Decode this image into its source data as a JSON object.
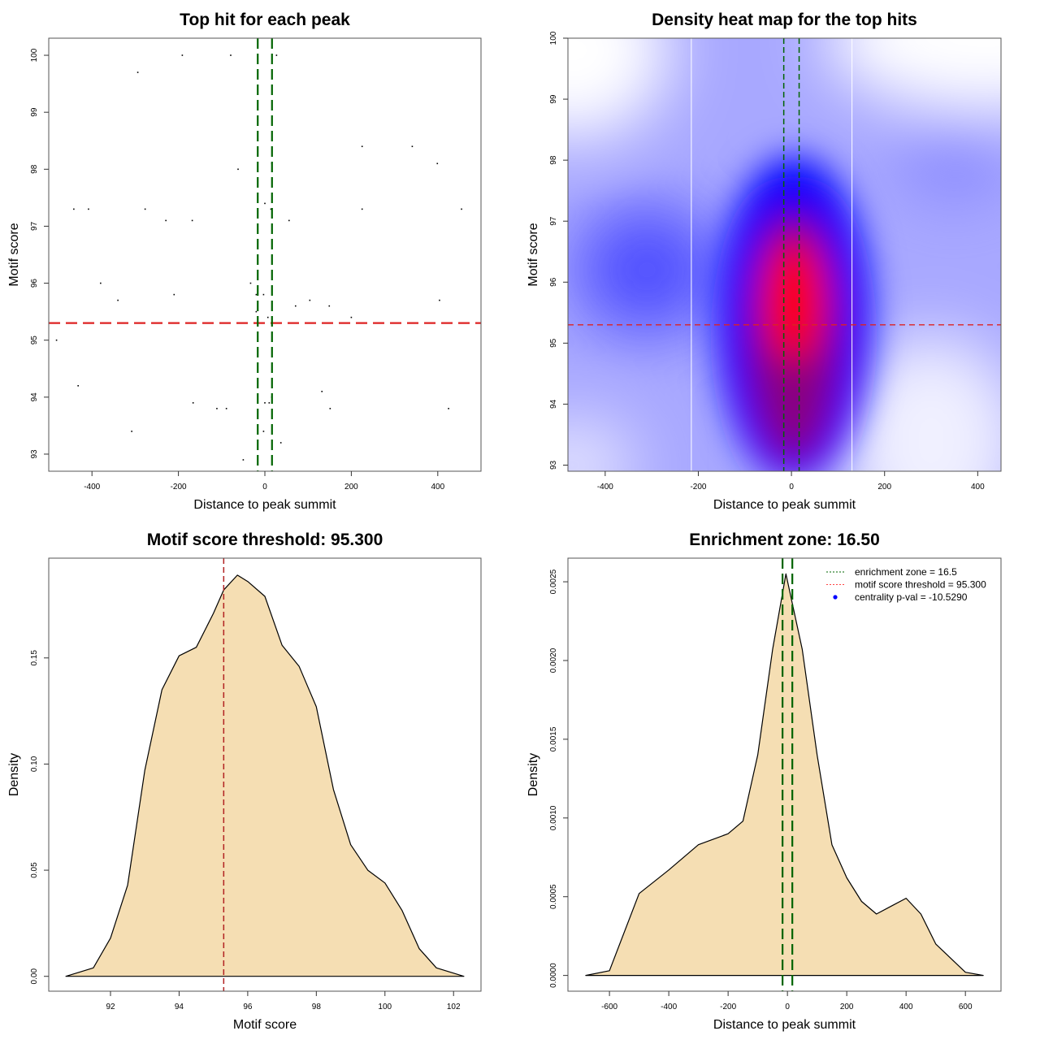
{
  "chart_data": [
    {
      "type": "scatter",
      "title": "Top hit for each peak",
      "xlabel": "Distance to peak summit",
      "ylabel": "Motif score",
      "xlim": [
        -500,
        500
      ],
      "ylim": [
        92.7,
        100.3
      ],
      "xticks": [
        -400,
        -200,
        0,
        200,
        400
      ],
      "yticks": [
        93,
        94,
        95,
        96,
        97,
        98,
        99,
        100
      ],
      "grid": false,
      "hlines": [
        {
          "value": 95.3,
          "color": "#dd2222",
          "style": "dashed"
        }
      ],
      "vlines": [
        {
          "value": -16.5,
          "color": "#006400",
          "style": "dashed"
        },
        {
          "value": 16.5,
          "color": "#006400",
          "style": "dashed"
        }
      ],
      "point_color": "#000000",
      "points": [
        [
          -191,
          100
        ],
        [
          -79,
          100
        ],
        [
          27,
          100
        ],
        [
          -294,
          99.7
        ],
        [
          -62,
          98.0
        ],
        [
          225,
          98.4
        ],
        [
          341,
          98.4
        ],
        [
          399,
          98.1
        ],
        [
          16,
          98.1
        ],
        [
          -442,
          97.3
        ],
        [
          -408,
          97.3
        ],
        [
          -277,
          97.3
        ],
        [
          -229,
          97.1
        ],
        [
          -168,
          97.1
        ],
        [
          0,
          97.4
        ],
        [
          14,
          97.3
        ],
        [
          56,
          97.1
        ],
        [
          225,
          97.3
        ],
        [
          455,
          97.3
        ],
        [
          -380,
          96.0
        ],
        [
          -340,
          95.7
        ],
        [
          -210,
          95.8
        ],
        [
          -33,
          96.0
        ],
        [
          -20,
          95.8
        ],
        [
          -3,
          95.8
        ],
        [
          -20,
          95.5
        ],
        [
          71,
          95.6
        ],
        [
          104,
          95.7
        ],
        [
          149,
          95.6
        ],
        [
          404,
          95.7
        ],
        [
          7,
          95.4
        ],
        [
          200,
          95.4
        ],
        [
          -482,
          95.0
        ],
        [
          -432,
          94.2
        ],
        [
          132,
          94.1
        ],
        [
          -166,
          93.9
        ],
        [
          -111,
          93.8
        ],
        [
          -89,
          93.8
        ],
        [
          0,
          93.9
        ],
        [
          10,
          93.9
        ],
        [
          16,
          94.0
        ],
        [
          151,
          93.8
        ],
        [
          425,
          93.8
        ],
        [
          -308,
          93.4
        ],
        [
          -3,
          93.4
        ],
        [
          37,
          93.2
        ],
        [
          -50,
          92.9
        ]
      ]
    },
    {
      "type": "heatmap",
      "title": "Density heat map for the top hits",
      "xlabel": "Distance to peak summit",
      "ylabel": "Motif score",
      "xlim": [
        -480,
        450
      ],
      "ylim": [
        92.9,
        100.0
      ],
      "xticks": [
        -400,
        -200,
        0,
        200,
        400
      ],
      "yticks": [
        93,
        94,
        95,
        96,
        97,
        98,
        99,
        100
      ],
      "colors": {
        "low": "#ffffff",
        "mid": "#0000ff",
        "high": "#ff0000"
      },
      "density_peak": [
        5,
        95.7
      ],
      "white_vlines": [
        -215,
        130
      ],
      "hlines": [
        {
          "value": 95.3,
          "color": "#dd2222",
          "style": "dashed"
        }
      ],
      "vlines": [
        {
          "value": -16.5,
          "color": "#006400",
          "style": "dashed"
        },
        {
          "value": 16.5,
          "color": "#006400",
          "style": "dashed"
        }
      ]
    },
    {
      "type": "area",
      "title": "Motif score threshold: 95.300",
      "xlabel": "Motif score",
      "ylabel": "Density",
      "xlim": [
        90.2,
        102.8
      ],
      "ylim": [
        -0.007,
        0.197
      ],
      "xticks": [
        92,
        94,
        96,
        98,
        100,
        102
      ],
      "yticks": [
        "0.00",
        "0.05",
        "0.10",
        "0.15"
      ],
      "fill": "#f5deb3",
      "vlines": [
        {
          "value": 95.3,
          "color": "#b22222",
          "style": "dashed"
        }
      ],
      "x": [
        90.7,
        91.5,
        92,
        92.5,
        93,
        93.5,
        94,
        94.5,
        95,
        95.3,
        95.7,
        96.0,
        96.5,
        97,
        97.5,
        98,
        98.5,
        99,
        99.5,
        100,
        100.5,
        101,
        101.5,
        102.3
      ],
      "y": [
        0,
        0.004,
        0.018,
        0.043,
        0.097,
        0.135,
        0.151,
        0.155,
        0.171,
        0.182,
        0.189,
        0.186,
        0.179,
        0.156,
        0.146,
        0.127,
        0.088,
        0.062,
        0.05,
        0.044,
        0.031,
        0.013,
        0.004,
        0
      ]
    },
    {
      "type": "area",
      "title": "Enrichment zone: 16.50",
      "xlabel": "Distance to peak summit",
      "ylabel": "Density",
      "xlim": [
        -740,
        720
      ],
      "ylim": [
        -0.0001,
        0.00265
      ],
      "xticks": [
        -600,
        -400,
        -200,
        0,
        200,
        400,
        600
      ],
      "yticks": [
        "0.0000",
        "0.0005",
        "0.0010",
        "0.0015",
        "0.0020",
        "0.0025"
      ],
      "fill": "#f5deb3",
      "vlines": [
        {
          "value": -16.5,
          "color": "#006400",
          "style": "dashed"
        },
        {
          "value": 16.5,
          "color": "#006400",
          "style": "dashed"
        }
      ],
      "x": [
        -680,
        -600,
        -500,
        -400,
        -300,
        -200,
        -150,
        -100,
        -50,
        -5,
        50,
        100,
        150,
        200,
        250,
        300,
        350,
        400,
        450,
        500,
        600,
        660
      ],
      "y": [
        0,
        3e-05,
        0.00052,
        0.00067,
        0.00083,
        0.0009,
        0.00098,
        0.0014,
        0.00207,
        0.00255,
        0.00207,
        0.0014,
        0.00083,
        0.00062,
        0.00047,
        0.00039,
        0.00044,
        0.00049,
        0.00039,
        0.0002,
        2e-05,
        0
      ],
      "legend": {
        "position": "top-right",
        "entries": [
          {
            "label": "enrichment zone = 16.5",
            "color": "#006400",
            "style": "dotted"
          },
          {
            "label": "motif score threshold = 95.300",
            "color": "#ff4444",
            "style": "dotted"
          },
          {
            "label": "centrality p-val = -10.5290",
            "color": "#0000ff",
            "style": "point"
          }
        ]
      }
    }
  ]
}
